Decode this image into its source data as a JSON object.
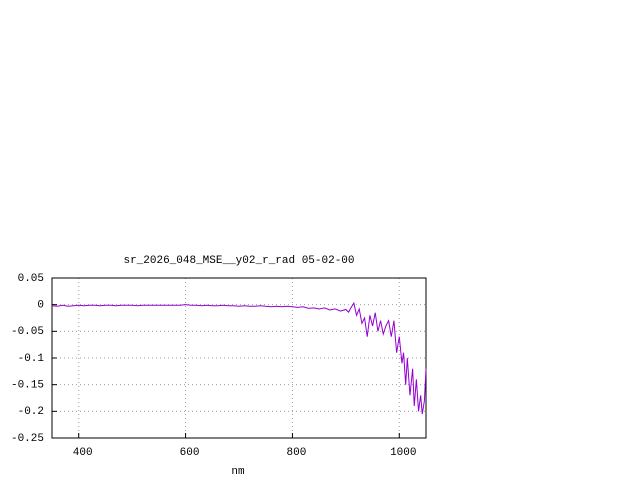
{
  "chart_data": {
    "type": "line",
    "title": "sr_2026_048_MSE__y02_r_rad 05-02-00",
    "x_label": "nm",
    "xlim": [
      350,
      1050
    ],
    "xticks": [
      400,
      600,
      800,
      1000
    ],
    "ylim": [
      -0.25,
      0.05
    ],
    "yticks": [
      0.05,
      0,
      -0.05,
      -0.1,
      -0.15,
      -0.2,
      -0.25
    ],
    "grid": true,
    "series": [
      {
        "color": "#9400d3",
        "x": [
          350,
          360,
          370,
          380,
          390,
          400,
          410,
          420,
          430,
          440,
          450,
          460,
          470,
          480,
          490,
          500,
          510,
          520,
          530,
          540,
          550,
          560,
          570,
          580,
          590,
          600,
          610,
          620,
          630,
          640,
          650,
          660,
          670,
          680,
          690,
          700,
          710,
          720,
          730,
          740,
          750,
          760,
          770,
          780,
          790,
          800,
          810,
          820,
          830,
          840,
          850,
          860,
          870,
          880,
          890,
          900,
          905,
          910,
          915,
          920,
          925,
          930,
          935,
          940,
          945,
          950,
          955,
          960,
          965,
          970,
          975,
          980,
          985,
          990,
          995,
          1000,
          1005,
          1008,
          1012,
          1015,
          1020,
          1025,
          1028,
          1032,
          1036,
          1040,
          1043,
          1047,
          1050
        ],
        "values": [
          -0.002,
          -0.003,
          -0.001,
          -0.003,
          -0.002,
          -0.001,
          -0.002,
          -0.001,
          -0.001,
          -0.002,
          -0.001,
          -0.001,
          -0.002,
          -0.001,
          -0.001,
          -0.001,
          -0.002,
          -0.001,
          -0.001,
          -0.001,
          -0.001,
          -0.001,
          -0.001,
          -0.001,
          -0.001,
          0,
          -0.001,
          -0.001,
          -0.002,
          -0.001,
          -0.002,
          -0.002,
          -0.001,
          -0.002,
          -0.002,
          -0.003,
          -0.002,
          -0.003,
          -0.003,
          -0.002,
          -0.003,
          -0.004,
          -0.003,
          -0.004,
          -0.003,
          -0.004,
          -0.005,
          -0.004,
          -0.007,
          -0.006,
          -0.008,
          -0.006,
          -0.01,
          -0.008,
          -0.012,
          -0.009,
          -0.014,
          -0.005,
          0.003,
          -0.02,
          -0.008,
          -0.035,
          -0.025,
          -0.06,
          -0.02,
          -0.04,
          -0.015,
          -0.05,
          -0.03,
          -0.055,
          -0.04,
          -0.03,
          -0.06,
          -0.03,
          -0.09,
          -0.06,
          -0.11,
          -0.09,
          -0.15,
          -0.1,
          -0.17,
          -0.12,
          -0.19,
          -0.14,
          -0.2,
          -0.17,
          -0.205,
          -0.18,
          -0.12
        ]
      }
    ]
  }
}
